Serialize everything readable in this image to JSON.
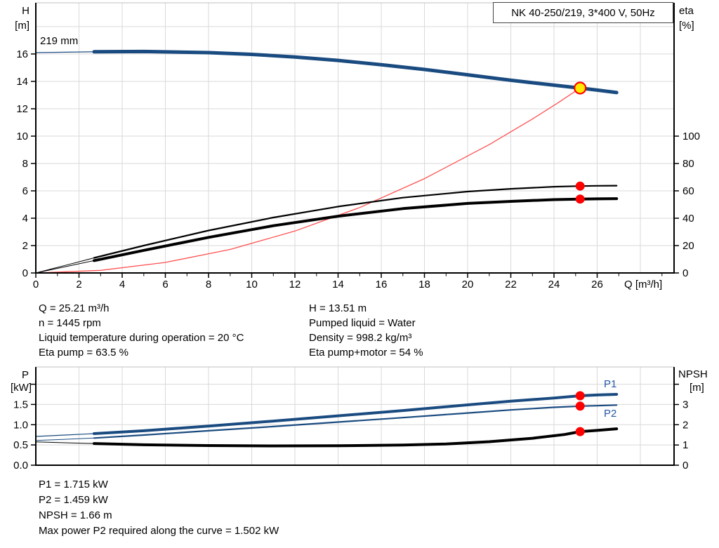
{
  "header": {
    "title_box": "NK 40-250/219, 3*400 V, 50Hz"
  },
  "top_chart": {
    "ylabel_left_line1": "H",
    "ylabel_left_line2": "[m]",
    "ylabel_right_line1": "eta",
    "ylabel_right_line2": "[%]",
    "xlabel": "Q [m³/h]",
    "curve_label": "219 mm"
  },
  "info": {
    "left": [
      "Q = 25.21 m³/h",
      "n = 1445 rpm",
      "Liquid temperature during operation = 20 °C",
      "Eta pump = 63.5 %"
    ],
    "right": [
      "H = 13.51 m",
      "Pumped liquid = Water",
      "Density = 998.2 kg/m³",
      "Eta pump+motor = 54 %"
    ]
  },
  "bottom_chart": {
    "ylabel_left_line1": "P",
    "ylabel_left_line2": "[kW]",
    "ylabel_right_line1": "NPSH",
    "ylabel_right_line2": "[m]",
    "p1_label": "P1",
    "p2_label": "P2"
  },
  "footer": {
    "lines": [
      "P1 = 1.715 kW",
      "P2 = 1.459 kW",
      "NPSH = 1.66 m",
      "Max power P2 required along the curve = 1.502 kW"
    ]
  },
  "colors": {
    "curve_blue": "#1a4b80",
    "curve_black": "#000000",
    "marker_red": "#ff0000",
    "system_red": "#ff5050",
    "duty_yellow": "#ffeb00",
    "grid": "#d9d9d9",
    "frame_light": "#c0c0c0",
    "axis_black": "#000000",
    "label_blue": "#2457a4",
    "npsh_tick_blue": "#2b4a7d"
  },
  "chart_data": [
    {
      "id": "main",
      "type": "line",
      "title": "NK 40-250/219, 3*400 V, 50Hz",
      "xlabel": "Q [m³/h]",
      "ylabel_left": "H [m]",
      "ylabel_right": "eta [%]",
      "annotation": "219 mm",
      "grid": true,
      "xlim": [
        0,
        29.56
      ],
      "ylim_left": [
        0,
        19.74
      ],
      "ylim_right": [
        0,
        197.4
      ],
      "x_ticks": [
        0,
        2,
        4,
        6,
        8,
        10,
        12,
        14,
        16,
        18,
        20,
        22,
        24,
        26
      ],
      "x_tick_labels": [
        "0",
        "2",
        "4",
        "6",
        "8",
        "10",
        "12",
        "14",
        "16",
        "18",
        "20",
        "22",
        "24",
        "26"
      ],
      "x_ticks_minor": [
        1,
        3,
        5,
        7,
        9,
        11,
        13,
        15,
        17,
        19,
        21,
        23,
        25,
        27,
        29
      ],
      "grid_x": [
        2,
        4,
        6,
        8,
        10,
        12,
        14,
        16,
        18,
        20,
        22,
        24,
        26,
        28
      ],
      "y_ticks_left": [
        0,
        2,
        4,
        6,
        8,
        10,
        12,
        14,
        16
      ],
      "y_tick_left_labels": [
        "0",
        "2",
        "4",
        "6",
        "8",
        "10",
        "12",
        "14",
        "16"
      ],
      "y_ticks_left_extra": [],
      "y_ticks_right": [
        0,
        20,
        40,
        60,
        80,
        100
      ],
      "y_tick_right_labels": [
        "0",
        "20",
        "40",
        "60",
        "80",
        "100"
      ],
      "y_ticks_right_extra": [],
      "grid_y": [
        2,
        4,
        6,
        8,
        10,
        12,
        14,
        16,
        18
      ],
      "x_axis_labels": true,
      "series": [
        {
          "name": "system-curve",
          "axis": "right_is_no,left",
          "color": "system_red",
          "width": 1.3,
          "thin_width": 1.3,
          "thin_until": 0,
          "axis_use": "left",
          "points": [
            [
              0,
              0
            ],
            [
              3,
              0.19
            ],
            [
              6,
              0.77
            ],
            [
              9,
              1.72
            ],
            [
              12,
              3.06
            ],
            [
              15,
              4.78
            ],
            [
              18,
              6.89
            ],
            [
              21,
              9.38
            ],
            [
              23,
              11.25
            ],
            [
              24.2,
              12.45
            ],
            [
              25.21,
              13.51
            ]
          ]
        },
        {
          "name": "eta-pump-curve",
          "axis_use": "right",
          "color": "curve_black",
          "width": 2.2,
          "thin_width": 1,
          "thin_until": 2.7,
          "points": [
            [
              0,
              0
            ],
            [
              1.35,
              5.5
            ],
            [
              2.7,
              11
            ],
            [
              5,
              20
            ],
            [
              8,
              31
            ],
            [
              11,
              40.5
            ],
            [
              14,
              48.5
            ],
            [
              17,
              55
            ],
            [
              20,
              59.5
            ],
            [
              22,
              61.5
            ],
            [
              24,
              63
            ],
            [
              25.21,
              63.5
            ],
            [
              26,
              63.7
            ],
            [
              26.9,
              63.8
            ]
          ]
        },
        {
          "name": "eta-pump-motor-curve",
          "axis_use": "right",
          "color": "curve_black",
          "width": 4,
          "thin_width": 1,
          "thin_until": 2.7,
          "points": [
            [
              0,
              0
            ],
            [
              1.35,
              4.5
            ],
            [
              2.7,
              9
            ],
            [
              5,
              16.5
            ],
            [
              8,
              26
            ],
            [
              11,
              34.5
            ],
            [
              14,
              41.5
            ],
            [
              17,
              47
            ],
            [
              20,
              50.8
            ],
            [
              22,
              52.3
            ],
            [
              24,
              53.6
            ],
            [
              25.21,
              54
            ],
            [
              26,
              54.15
            ],
            [
              26.9,
              54.3
            ]
          ]
        },
        {
          "name": "head-curve-219mm",
          "axis_use": "left",
          "color": "curve_blue",
          "width": 5,
          "thin_width": 1.2,
          "thin_until": 2.7,
          "points": [
            [
              0,
              16.1
            ],
            [
              1.4,
              16.13
            ],
            [
              2.7,
              16.16
            ],
            [
              5,
              16.18
            ],
            [
              8,
              16.1
            ],
            [
              10,
              15.97
            ],
            [
              12,
              15.78
            ],
            [
              14,
              15.53
            ],
            [
              16,
              15.22
            ],
            [
              18,
              14.87
            ],
            [
              20,
              14.48
            ],
            [
              22,
              14.08
            ],
            [
              24,
              13.72
            ],
            [
              25.21,
              13.51
            ],
            [
              26,
              13.36
            ],
            [
              26.9,
              13.18
            ]
          ]
        }
      ],
      "markers": [
        {
          "name": "eta-pump-point",
          "x": 25.21,
          "y": 63.5,
          "axis_use": "right",
          "r": 6.5,
          "fill": "marker_red"
        },
        {
          "name": "eta-pump-motor-point",
          "x": 25.21,
          "y": 54,
          "axis_use": "right",
          "r": 6.5,
          "fill": "marker_red"
        },
        {
          "name": "duty-point",
          "x": 25.21,
          "y": 13.51,
          "axis_use": "left",
          "r": 8,
          "fill": "duty_yellow",
          "stroke": "marker_red",
          "stroke_width": 2.2
        }
      ]
    },
    {
      "id": "power",
      "type": "line",
      "title": "",
      "xlabel": "",
      "ylabel_left": "P [kW]",
      "ylabel_right": "NPSH [m]",
      "grid": true,
      "xlim": [
        0,
        29.56
      ],
      "ylim_left": [
        0,
        2.426
      ],
      "ylim_right": [
        0,
        4.853
      ],
      "x_ticks": [],
      "x_tick_labels": [],
      "x_ticks_minor": [],
      "grid_x": [
        2,
        4,
        6,
        8,
        10,
        12,
        14,
        16,
        18,
        20,
        22,
        24,
        26,
        28
      ],
      "y_ticks_left": [
        0,
        0.5,
        1,
        1.5
      ],
      "y_tick_left_labels": [
        "0.0",
        "0.5",
        "1.0",
        "1.5"
      ],
      "y_ticks_left_extra": [
        2
      ],
      "y_ticks_right": [
        0,
        1,
        2,
        3
      ],
      "y_tick_right_labels": [
        "0",
        "1",
        "2",
        "3"
      ],
      "y_ticks_right_extra": [
        4
      ],
      "y_right_label_color": "npsh_tick_blue",
      "grid_y": [
        0.5,
        1,
        1.5,
        2
      ],
      "x_axis_labels": false,
      "series": [
        {
          "name": "npsh-curve",
          "axis_use": "right",
          "color": "curve_black",
          "width": 4,
          "thin_width": 1,
          "thin_until": 2.7,
          "points": [
            [
              0,
              1.15
            ],
            [
              1.35,
              1.11
            ],
            [
              2.7,
              1.07
            ],
            [
              5,
              1.01
            ],
            [
              8,
              0.97
            ],
            [
              11,
              0.955
            ],
            [
              14,
              0.96
            ],
            [
              17,
              1.0
            ],
            [
              19,
              1.05
            ],
            [
              21,
              1.16
            ],
            [
              23,
              1.33
            ],
            [
              24.5,
              1.52
            ],
            [
              25.21,
              1.66
            ],
            [
              26,
              1.72
            ],
            [
              26.9,
              1.8
            ]
          ]
        },
        {
          "name": "p2-curve",
          "axis_use": "left",
          "color": "curve_blue",
          "width": 2.2,
          "thin_width": 1,
          "thin_until": 2.7,
          "points": [
            [
              0,
              0.61
            ],
            [
              1.35,
              0.64
            ],
            [
              2.7,
              0.67
            ],
            [
              5,
              0.745
            ],
            [
              8,
              0.85
            ],
            [
              11,
              0.955
            ],
            [
              14,
              1.065
            ],
            [
              17,
              1.175
            ],
            [
              20,
              1.29
            ],
            [
              22,
              1.365
            ],
            [
              24,
              1.43
            ],
            [
              25.21,
              1.459
            ],
            [
              26,
              1.47
            ],
            [
              26.9,
              1.485
            ]
          ]
        },
        {
          "name": "p1-curve",
          "axis_use": "left",
          "color": "curve_blue",
          "width": 4,
          "thin_width": 1.2,
          "thin_until": 2.7,
          "points": [
            [
              0,
              0.71
            ],
            [
              1.35,
              0.745
            ],
            [
              2.7,
              0.78
            ],
            [
              5,
              0.85
            ],
            [
              8,
              0.965
            ],
            [
              11,
              1.09
            ],
            [
              14,
              1.22
            ],
            [
              17,
              1.35
            ],
            [
              20,
              1.49
            ],
            [
              22,
              1.58
            ],
            [
              24,
              1.66
            ],
            [
              25.21,
              1.715
            ],
            [
              26,
              1.735
            ],
            [
              26.9,
              1.75
            ]
          ]
        }
      ],
      "markers": [
        {
          "name": "p1-point",
          "x": 25.21,
          "y": 1.715,
          "axis_use": "left",
          "r": 6.5,
          "fill": "marker_red"
        },
        {
          "name": "p2-point",
          "x": 25.21,
          "y": 1.459,
          "axis_use": "left",
          "r": 6.5,
          "fill": "marker_red"
        },
        {
          "name": "npsh-point",
          "x": 25.21,
          "y": 1.66,
          "axis_use": "right",
          "r": 6.5,
          "fill": "marker_red"
        }
      ]
    }
  ]
}
